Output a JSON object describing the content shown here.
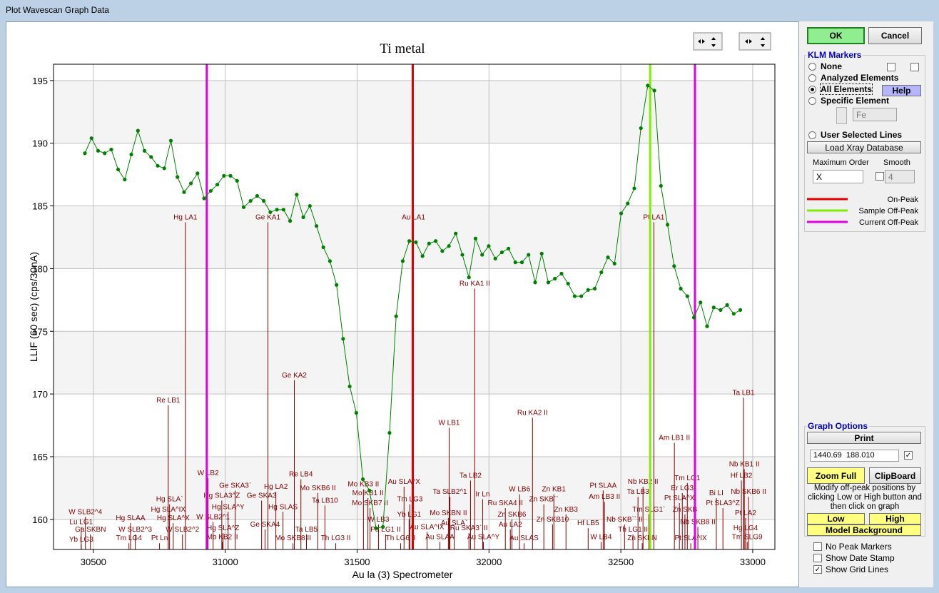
{
  "window_title": "Plot Wavescan Graph Data",
  "chart_data": {
    "type": "line",
    "title": "Ti metal",
    "xlabel": "Au la (3) Spectrometer",
    "ylabel": "LLIF (60 sec) (cps/30nA)",
    "xlim": [
      30349,
      33084
    ],
    "ylim": [
      157.6,
      196.3
    ],
    "xticks": [
      30500,
      31000,
      31500,
      32000,
      32500,
      33000
    ],
    "yticks": [
      160,
      165,
      170,
      175,
      180,
      185,
      190,
      195
    ],
    "grid": true,
    "x": [
      30468,
      30493,
      30518,
      30543,
      30568,
      30594,
      30619,
      30644,
      30669,
      30694,
      30719,
      30744,
      30769,
      30794,
      30819,
      30844,
      30870,
      30895,
      30920,
      30945,
      30970,
      30995,
      31020,
      31045,
      31070,
      31096,
      31121,
      31146,
      31171,
      31196,
      31221,
      31246,
      31271,
      31296,
      31321,
      31346,
      31372,
      31397,
      31422,
      31447,
      31472,
      31497,
      31522,
      31547,
      31572,
      31598,
      31623,
      31648,
      31673,
      31698,
      31723,
      31748,
      31773,
      31798,
      31823,
      31848,
      31874,
      31899,
      31924,
      31949,
      31974,
      31999,
      32024,
      32049,
      32074,
      32100,
      32125,
      32150,
      32175,
      32200,
      32225,
      32250,
      32275,
      32300,
      32325,
      32350,
      32376,
      32401,
      32426,
      32451,
      32476,
      32501,
      32526,
      32551,
      32576,
      32602,
      32627,
      32652,
      32677,
      32702,
      32727,
      32752,
      32777,
      32802,
      32827,
      32852,
      32878,
      32903,
      32928,
      32953
    ],
    "series": [
      {
        "color": "#008000",
        "values": [
          189.2,
          190.4,
          189.4,
          189.2,
          189.5,
          187.9,
          187.1,
          189.1,
          191.0,
          189.4,
          188.9,
          188.2,
          188.0,
          190.2,
          187.3,
          186.1,
          186.8,
          187.6,
          185.6,
          186.2,
          186.7,
          187.4,
          187.4,
          187.0,
          184.9,
          185.4,
          185.8,
          185.4,
          184.5,
          184.7,
          184.7,
          183.8,
          185.9,
          184.1,
          185.0,
          183.4,
          181.7,
          180.6,
          178.7,
          174.4,
          170.6,
          168.5,
          163.2,
          162.3,
          159.3,
          159.4,
          166.9,
          176.2,
          180.6,
          182.2,
          182.1,
          181.0,
          182.0,
          182.2,
          181.4,
          181.8,
          182.8,
          181.1,
          179.3,
          182.4,
          181.1,
          181.8,
          180.8,
          181.3,
          181.6,
          180.5,
          180.5,
          181.1,
          178.9,
          181.2,
          178.9,
          179.2,
          179.6,
          178.8,
          177.8,
          177.8,
          178.3,
          178.4,
          179.7,
          180.9,
          180.4,
          184.4,
          185.2,
          186.4,
          191.2,
          194.6,
          194.2,
          186.6,
          183.5,
          180.2,
          178.4,
          177.8,
          176.1,
          177.3,
          175.4,
          176.9,
          176.7,
          177.1,
          176.4,
          176.7
        ]
      }
    ],
    "peak_lines": [
      {
        "name": "On-Peak",
        "color": "#e00000",
        "x": [
          31711
        ]
      },
      {
        "name": "Sample Off-Peak",
        "color": "#80ee00",
        "x": [
          32611
        ]
      },
      {
        "name": "Current Off-Peak",
        "color": "#e000e0",
        "x": [
          30930,
          32781
        ]
      }
    ],
    "marker_color": "#800000",
    "markers": [
      {
        "label": "Hg LA1",
        "x": 30849,
        "y": 183.7
      },
      {
        "label": "Ge KA1",
        "x": 31162,
        "y": 183.7
      },
      {
        "label": "Au LA1",
        "x": 31714,
        "y": 183.7
      },
      {
        "label": "Pt LA1",
        "x": 32625,
        "y": 183.7
      },
      {
        "label": "Ru KA1 II",
        "x": 31946,
        "y": 178.4
      },
      {
        "label": "Re LB1",
        "x": 30784,
        "y": 169.1
      },
      {
        "label": "Ge KA2",
        "x": 31262,
        "y": 171.1
      },
      {
        "label": "Ru KA2 II",
        "x": 32165,
        "y": 168.1
      },
      {
        "label": "W LB1",
        "x": 31849,
        "y": 167.3
      },
      {
        "label": "Ta LB1",
        "x": 32965,
        "y": 169.7
      },
      {
        "label": "Am LB1 II",
        "x": 32703,
        "y": 166.1
      },
      {
        "label": "Ta LB2",
        "x": 31930,
        "y": 163.1
      },
      {
        "label": "Nb KB1 II",
        "x": 32968,
        "y": 164.0
      },
      {
        "label": "Hf LB2",
        "x": 32957,
        "y": 163.1
      },
      {
        "label": "Re LB4",
        "x": 31287,
        "y": 163.2
      },
      {
        "label": "W LB2",
        "x": 30935,
        "y": 163.3
      },
      {
        "label": "W SLB2^4",
        "x": 30470,
        "y": 160.2
      },
      {
        "label": "Lu LG1",
        "x": 30454,
        "y": 159.4
      },
      {
        "label": "Ga SKBN",
        "x": 30489,
        "y": 158.8
      },
      {
        "label": "Yb LG3",
        "x": 30454,
        "y": 158.0
      },
      {
        "label": "Hg SLAA",
        "x": 30641,
        "y": 159.7
      },
      {
        "label": "W SLB2^3",
        "x": 30659,
        "y": 158.8
      },
      {
        "label": "Tm LG4",
        "x": 30635,
        "y": 158.1
      },
      {
        "label": "Pt Ln",
        "x": 30751,
        "y": 158.1
      },
      {
        "label": "Hg SLA`",
        "x": 30789,
        "y": 161.2
      },
      {
        "label": "Hg SLA^IX",
        "x": 30784,
        "y": 160.4
      },
      {
        "label": "Hg SLA^X",
        "x": 30803,
        "y": 159.7
      },
      {
        "label": "W SLB2^2",
        "x": 30838,
        "y": 158.8
      },
      {
        "label": "W SLB2^1",
        "x": 30954,
        "y": 159.8
      },
      {
        "label": "Hg SLA^Z",
        "x": 30992,
        "y": 158.9
      },
      {
        "label": "Mo KB2 II",
        "x": 30989,
        "y": 158.2
      },
      {
        "label": "Hg SLA3^Z",
        "x": 30987,
        "y": 161.5
      },
      {
        "label": "Ge SKA3`",
        "x": 31038,
        "y": 162.3
      },
      {
        "label": "Hg SLA^Y",
        "x": 31011,
        "y": 160.6
      },
      {
        "label": "Ge SKA3",
        "x": 31138,
        "y": 161.5
      },
      {
        "label": "Hg LA2",
        "x": 31192,
        "y": 162.2
      },
      {
        "label": "Hg SLAS",
        "x": 31219,
        "y": 160.6
      },
      {
        "label": "Ge SKA4",
        "x": 31151,
        "y": 159.2
      },
      {
        "label": "Ta LB5",
        "x": 31308,
        "y": 158.8
      },
      {
        "label": "Mo SKB8 II",
        "x": 31257,
        "y": 158.1
      },
      {
        "label": "Ta LB10",
        "x": 31378,
        "y": 161.1
      },
      {
        "label": "Mo SKB6 II",
        "x": 31351,
        "y": 162.1
      },
      {
        "label": "Th LG3 II",
        "x": 31419,
        "y": 158.1
      },
      {
        "label": "Mo KB3 II",
        "x": 31524,
        "y": 162.4
      },
      {
        "label": "Mo KB1 II",
        "x": 31541,
        "y": 161.7
      },
      {
        "label": "Mo SKB7 II",
        "x": 31549,
        "y": 160.9
      },
      {
        "label": "W LB3",
        "x": 31581,
        "y": 159.6
      },
      {
        "label": "Pa LG1 II",
        "x": 31608,
        "y": 158.8
      },
      {
        "label": "Au SLA^X",
        "x": 31678,
        "y": 162.6
      },
      {
        "label": "Tm LG3",
        "x": 31700,
        "y": 161.2
      },
      {
        "label": "Yb LG1",
        "x": 31697,
        "y": 160.0
      },
      {
        "label": "Th LG6 II",
        "x": 31665,
        "y": 158.1
      },
      {
        "label": "Au SLA^IX",
        "x": 31765,
        "y": 159.0
      },
      {
        "label": "Au SLAA",
        "x": 31814,
        "y": 158.2
      },
      {
        "label": "Ta SLB2^1",
        "x": 31852,
        "y": 161.8
      },
      {
        "label": "Au SLA`",
        "x": 31868,
        "y": 159.3
      },
      {
        "label": "Mo SKBN II",
        "x": 31846,
        "y": 160.1
      },
      {
        "label": "Ru SKA3` II",
        "x": 31924,
        "y": 158.9
      },
      {
        "label": "Au SLA^Y",
        "x": 31979,
        "y": 158.2
      },
      {
        "label": "Ir Ln",
        "x": 31976,
        "y": 161.6
      },
      {
        "label": "Ru SKA4 II",
        "x": 32062,
        "y": 160.9
      },
      {
        "label": "Zn SKB6",
        "x": 32087,
        "y": 160.0
      },
      {
        "label": "Au LA2",
        "x": 32081,
        "y": 159.2
      },
      {
        "label": "Au SLAS",
        "x": 32133,
        "y": 158.1
      },
      {
        "label": "W LB6",
        "x": 32116,
        "y": 162.0
      },
      {
        "label": "Zn SKB``",
        "x": 32208,
        "y": 161.2
      },
      {
        "label": "Zn KB1",
        "x": 32246,
        "y": 162.0
      },
      {
        "label": "Zn SKB10",
        "x": 32241,
        "y": 159.6
      },
      {
        "label": "Zn KB3",
        "x": 32292,
        "y": 160.4
      },
      {
        "label": "Hf LB5",
        "x": 32376,
        "y": 159.3
      },
      {
        "label": "W LB4",
        "x": 32425,
        "y": 158.2
      },
      {
        "label": "Pt SLAA",
        "x": 32433,
        "y": 162.3
      },
      {
        "label": "Am LB3 II",
        "x": 32438,
        "y": 161.4
      },
      {
        "label": "Nb KB2 II",
        "x": 32584,
        "y": 162.6
      },
      {
        "label": "Ta LB3",
        "x": 32565,
        "y": 161.8
      },
      {
        "label": "Nb SKB`` II",
        "x": 32514,
        "y": 159.6
      },
      {
        "label": "Tm SLG1`",
        "x": 32606,
        "y": 160.4
      },
      {
        "label": "Th LG1 II",
        "x": 32546,
        "y": 158.8
      },
      {
        "label": "Zn SKBN",
        "x": 32581,
        "y": 158.1
      },
      {
        "label": "Tm LG1",
        "x": 32752,
        "y": 162.9
      },
      {
        "label": "Er LG3",
        "x": 32733,
        "y": 162.1
      },
      {
        "label": "Pt SLA^X",
        "x": 32722,
        "y": 161.3
      },
      {
        "label": "Zn SKB",
        "x": 32743,
        "y": 160.4
      },
      {
        "label": "Nb SKB8 II",
        "x": 32792,
        "y": 159.4
      },
      {
        "label": "Pt SLA^IX",
        "x": 32765,
        "y": 158.1
      },
      {
        "label": "Bi LI",
        "x": 32862,
        "y": 161.7
      },
      {
        "label": "Pt SLA3^Z",
        "x": 32887,
        "y": 160.9
      },
      {
        "label": "Nb SKB6 II",
        "x": 32984,
        "y": 161.8
      },
      {
        "label": "Pt LA2",
        "x": 32973,
        "y": 160.1
      },
      {
        "label": "Hg LG4",
        "x": 32973,
        "y": 158.9
      },
      {
        "label": "Tm SLG9",
        "x": 32979,
        "y": 158.2
      }
    ]
  },
  "panel": {
    "ok": "OK",
    "cancel": "Cancel",
    "klm_title": "KLM Markers",
    "radios": [
      "None",
      "Analyzed Elements",
      "All Elements",
      "Specific Element",
      "User Selected Lines"
    ],
    "help": "Help",
    "element": "Fe",
    "load_button": "Load Xray Database",
    "max_order_label": "Maximum Order",
    "smooth_label": "Smooth",
    "max_order": "X",
    "smooth": "4",
    "graph_options_title": "Graph Options",
    "print": "Print",
    "coordinates": "1440.69  188.010",
    "zoom_full": "Zoom Full",
    "clipboard": "ClipBoard",
    "instructions": "Modify off-peak positions by clicking Low or High button and then click on graph",
    "low": "Low",
    "high": "High",
    "model_background": "Model Background",
    "checkboxes": [
      "No Peak Markers",
      "Show Date Stamp",
      "Show Grid Lines"
    ]
  }
}
